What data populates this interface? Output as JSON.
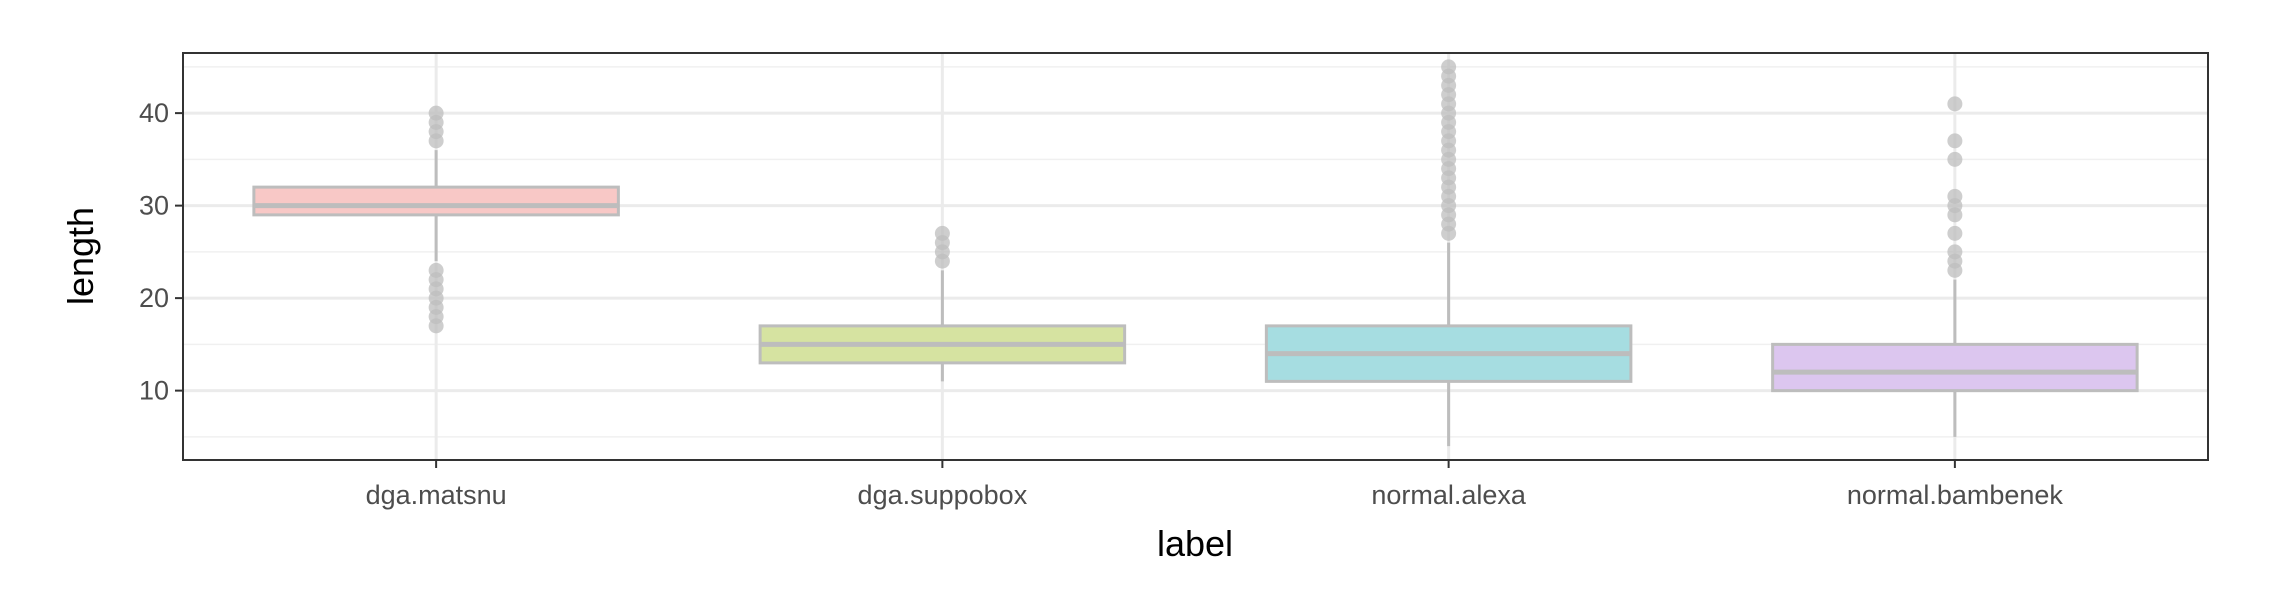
{
  "chart_data": {
    "type": "boxplot",
    "title": "",
    "xlabel": "label",
    "ylabel": "length",
    "ylim": [
      2.5,
      46.5
    ],
    "y_ticks": [
      10,
      20,
      30,
      40
    ],
    "y_minor_ticks": [
      5,
      15,
      25,
      35,
      45
    ],
    "grid": true,
    "legend": "none",
    "categories": [
      "dga.matsnu",
      "dga.suppobox",
      "normal.alexa",
      "normal.bambenek"
    ],
    "boxes": [
      {
        "category": "dga.matsnu",
        "color": "#f8c8c6",
        "whisker_low": 24,
        "q1": 29,
        "median": 30,
        "q3": 32,
        "whisker_high": 36,
        "outliers": [
          17,
          18,
          19,
          20,
          21,
          22,
          23,
          37,
          38,
          39,
          40
        ]
      },
      {
        "category": "dga.suppobox",
        "color": "#d6e3a1",
        "whisker_low": 11,
        "q1": 13,
        "median": 15,
        "q3": 17,
        "whisker_high": 23,
        "outliers": [
          24,
          25,
          26,
          27
        ]
      },
      {
        "category": "normal.alexa",
        "color": "#a6dde1",
        "whisker_low": 4,
        "q1": 11,
        "median": 14,
        "q3": 17,
        "whisker_high": 26,
        "outliers": [
          27,
          28,
          29,
          30,
          31,
          32,
          33,
          34,
          35,
          36,
          37,
          38,
          39,
          40,
          41,
          42,
          43,
          44,
          45
        ]
      },
      {
        "category": "normal.bambenek",
        "color": "#dcc6ef",
        "whisker_low": 5,
        "q1": 10,
        "median": 12,
        "q3": 15,
        "whisker_high": 22,
        "outliers": [
          23,
          24,
          25,
          27,
          29,
          30,
          31,
          35,
          37,
          41
        ]
      }
    ]
  }
}
